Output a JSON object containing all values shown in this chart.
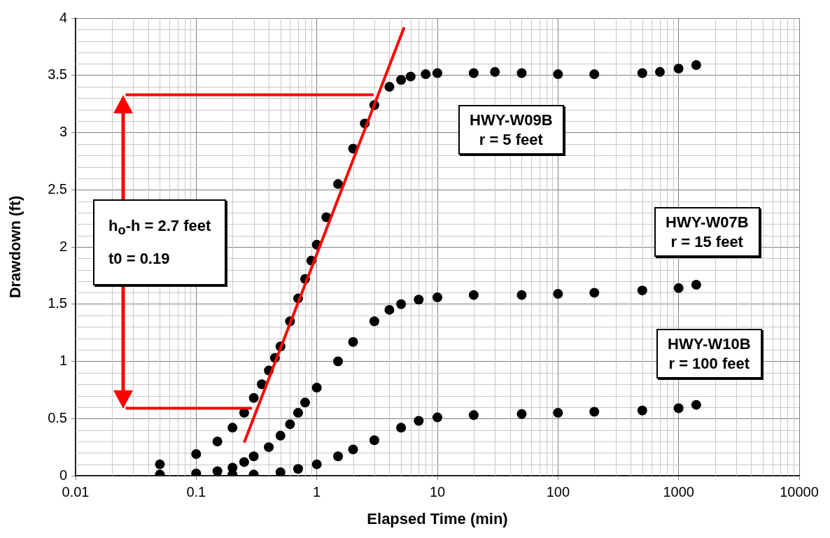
{
  "chart_data": {
    "type": "scatter",
    "xlabel": "Elapsed Time (min)",
    "ylabel": "Drawdown (ft)",
    "log": "x",
    "xlim": [
      0.01,
      10000
    ],
    "xticks": [
      0.01,
      0.1,
      1,
      10,
      100,
      1000,
      10000
    ],
    "ylim": [
      0,
      4
    ],
    "yticks": [
      0,
      0.5,
      1,
      1.5,
      2,
      2.5,
      3,
      3.5,
      4
    ],
    "grid": true,
    "legend": false,
    "marker": "circle",
    "series": [
      {
        "name": "HWY-W09B",
        "color": "#000000",
        "x": [
          0.05,
          0.1,
          0.15,
          0.2,
          0.25,
          0.3,
          0.35,
          0.4,
          0.45,
          0.5,
          0.6,
          0.7,
          0.8,
          0.9,
          1,
          1.2,
          1.5,
          2,
          2.5,
          3,
          4,
          5,
          6,
          8,
          10,
          20,
          30,
          50,
          100,
          200,
          500,
          700,
          1000,
          1400
        ],
        "values": [
          0.1,
          0.19,
          0.3,
          0.42,
          0.55,
          0.68,
          0.8,
          0.92,
          1.03,
          1.13,
          1.35,
          1.55,
          1.72,
          1.88,
          2.02,
          2.26,
          2.55,
          2.86,
          3.08,
          3.24,
          3.4,
          3.46,
          3.49,
          3.51,
          3.52,
          3.52,
          3.53,
          3.52,
          3.51,
          3.51,
          3.52,
          3.53,
          3.56,
          3.59
        ]
      },
      {
        "name": "HWY-W07B",
        "color": "#000000",
        "x": [
          0.05,
          0.1,
          0.15,
          0.2,
          0.25,
          0.3,
          0.4,
          0.5,
          0.6,
          0.7,
          0.8,
          1,
          1.5,
          2,
          3,
          4,
          5,
          7,
          10,
          20,
          50,
          100,
          200,
          500,
          1000,
          1400
        ],
        "values": [
          0.01,
          0.02,
          0.04,
          0.07,
          0.12,
          0.17,
          0.25,
          0.35,
          0.45,
          0.55,
          0.64,
          0.77,
          1.0,
          1.17,
          1.35,
          1.45,
          1.5,
          1.54,
          1.56,
          1.58,
          1.58,
          1.59,
          1.6,
          1.62,
          1.64,
          1.67
        ]
      },
      {
        "name": "HWY-W10B",
        "color": "#000000",
        "x": [
          0.2,
          0.3,
          0.5,
          0.7,
          1,
          1.5,
          2,
          3,
          5,
          7,
          10,
          20,
          50,
          100,
          200,
          500,
          1000,
          1400
        ],
        "values": [
          0.01,
          0.01,
          0.03,
          0.06,
          0.1,
          0.17,
          0.23,
          0.31,
          0.42,
          0.48,
          0.51,
          0.53,
          0.54,
          0.55,
          0.56,
          0.57,
          0.59,
          0.62
        ]
      },
      {
        "type": "line",
        "marker": "none",
        "color": "#ff0000",
        "x": [
          0.25,
          5.3
        ],
        "values": [
          0.29,
          3.92
        ]
      },
      {
        "type": "line",
        "marker": "none",
        "color": "#ff0000",
        "x": [
          0.026,
          2.96
        ],
        "values": [
          3.33,
          3.33
        ]
      },
      {
        "type": "line",
        "marker": "none",
        "color": "#ff0000",
        "x": [
          0.026,
          0.29
        ],
        "values": [
          0.59,
          0.59
        ]
      }
    ],
    "annotations": [
      "r = 5 feet",
      "r = 15 feet",
      "r = 100 feet",
      "h$_{o}$-h = 2.7 feet",
      "t0 = 0.19"
    ]
  }
}
